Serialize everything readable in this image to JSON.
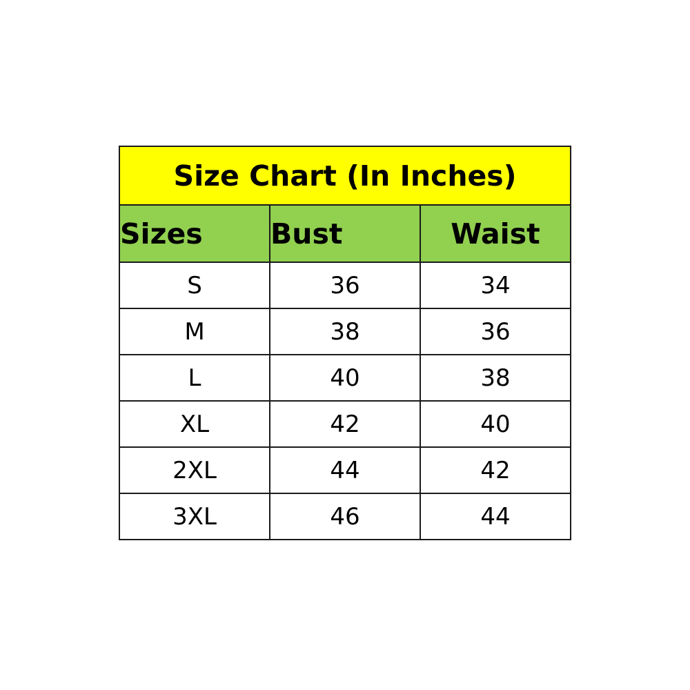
{
  "title": "Size Chart (In Inches)",
  "colors": {
    "title_bg": "#FFFF00",
    "header_bg": "#92D050"
  },
  "headers": [
    "Sizes",
    "Bust",
    "Waist"
  ],
  "rows": [
    [
      "S",
      "36",
      "34"
    ],
    [
      "M",
      "38",
      "36"
    ],
    [
      "L",
      "40",
      "38"
    ],
    [
      "XL",
      "42",
      "40"
    ],
    [
      "2XL",
      "44",
      "42"
    ],
    [
      "3XL",
      "46",
      "44"
    ]
  ]
}
